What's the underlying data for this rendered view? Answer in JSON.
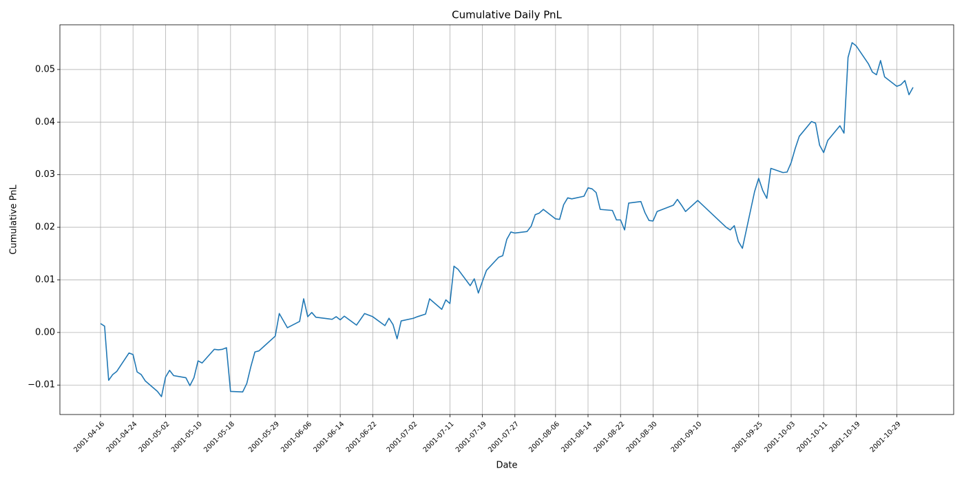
{
  "chart_data": {
    "type": "line",
    "title": "Cumulative Daily PnL",
    "x_label": "Date",
    "y_label": "Cumulative PnL",
    "x": [
      "2001-04-16",
      "2001-04-17",
      "2001-04-18",
      "2001-04-19",
      "2001-04-20",
      "2001-04-23",
      "2001-04-24",
      "2001-04-25",
      "2001-04-26",
      "2001-04-27",
      "2001-04-30",
      "2001-05-01",
      "2001-05-02",
      "2001-05-03",
      "2001-05-04",
      "2001-05-07",
      "2001-05-08",
      "2001-05-09",
      "2001-05-10",
      "2001-05-11",
      "2001-05-14",
      "2001-05-15",
      "2001-05-16",
      "2001-05-17",
      "2001-05-18",
      "2001-05-21",
      "2001-05-22",
      "2001-05-23",
      "2001-05-24",
      "2001-05-25",
      "2001-05-29",
      "2001-05-30",
      "2001-06-01",
      "2001-06-04",
      "2001-06-05",
      "2001-06-06",
      "2001-06-07",
      "2001-06-08",
      "2001-06-11",
      "2001-06-12",
      "2001-06-13",
      "2001-06-14",
      "2001-06-15",
      "2001-06-18",
      "2001-06-19",
      "2001-06-20",
      "2001-06-21",
      "2001-06-22",
      "2001-06-25",
      "2001-06-26",
      "2001-06-27",
      "2001-06-28",
      "2001-06-29",
      "2001-07-02",
      "2001-07-03",
      "2001-07-05",
      "2001-07-06",
      "2001-07-09",
      "2001-07-10",
      "2001-07-11",
      "2001-07-12",
      "2001-07-13",
      "2001-07-16",
      "2001-07-17",
      "2001-07-18",
      "2001-07-19",
      "2001-07-20",
      "2001-07-23",
      "2001-07-24",
      "2001-07-25",
      "2001-07-26",
      "2001-07-27",
      "2001-07-30",
      "2001-07-31",
      "2001-08-01",
      "2001-08-02",
      "2001-08-03",
      "2001-08-06",
      "2001-08-07",
      "2001-08-08",
      "2001-08-09",
      "2001-08-10",
      "2001-08-13",
      "2001-08-14",
      "2001-08-15",
      "2001-08-16",
      "2001-08-17",
      "2001-08-20",
      "2001-08-21",
      "2001-08-22",
      "2001-08-23",
      "2001-08-24",
      "2001-08-27",
      "2001-08-28",
      "2001-08-29",
      "2001-08-30",
      "2001-08-31",
      "2001-09-04",
      "2001-09-05",
      "2001-09-06",
      "2001-09-07",
      "2001-09-10",
      "2001-09-17",
      "2001-09-18",
      "2001-09-19",
      "2001-09-20",
      "2001-09-21",
      "2001-09-24",
      "2001-09-25",
      "2001-09-26",
      "2001-09-27",
      "2001-09-28",
      "2001-10-01",
      "2001-10-02",
      "2001-10-03",
      "2001-10-04",
      "2001-10-05",
      "2001-10-08",
      "2001-10-09",
      "2001-10-10",
      "2001-10-11",
      "2001-10-12",
      "2001-10-15",
      "2001-10-16",
      "2001-10-17",
      "2001-10-18",
      "2001-10-19",
      "2001-10-22",
      "2001-10-23",
      "2001-10-24",
      "2001-10-25",
      "2001-10-26",
      "2001-10-29",
      "2001-10-30",
      "2001-10-31",
      "2001-11-01",
      "2001-11-02"
    ],
    "series": [
      {
        "color": "#1f77b4",
        "values": [
          0.0017,
          0.0012,
          -0.0091,
          -0.008,
          -0.0074,
          -0.0039,
          -0.0042,
          -0.0075,
          -0.008,
          -0.0092,
          -0.0112,
          -0.0122,
          -0.0085,
          -0.0072,
          -0.0082,
          -0.0086,
          -0.0101,
          -0.0086,
          -0.0054,
          -0.0058,
          -0.0032,
          -0.0033,
          -0.0032,
          -0.0029,
          -0.0112,
          -0.0113,
          -0.0097,
          -0.0065,
          -0.0037,
          -0.0035,
          -0.0007,
          0.0036,
          0.0009,
          0.0021,
          0.0064,
          0.003,
          0.0038,
          0.0029,
          0.0026,
          0.0025,
          0.003,
          0.0024,
          0.0031,
          0.0014,
          0.0025,
          0.0036,
          0.0033,
          0.003,
          0.0013,
          0.0027,
          0.0015,
          -0.0012,
          0.0022,
          0.0027,
          0.003,
          0.0035,
          0.0064,
          0.0044,
          0.0062,
          0.0055,
          0.0126,
          0.012,
          0.0089,
          0.0102,
          0.0075,
          0.0097,
          0.0118,
          0.0143,
          0.0146,
          0.0177,
          0.0191,
          0.0189,
          0.0192,
          0.0202,
          0.0224,
          0.0227,
          0.0234,
          0.0216,
          0.0215,
          0.0243,
          0.0256,
          0.0254,
          0.0259,
          0.0275,
          0.0273,
          0.0266,
          0.0234,
          0.0232,
          0.0214,
          0.0214,
          0.0195,
          0.0246,
          0.0249,
          0.0228,
          0.0213,
          0.0212,
          0.023,
          0.0242,
          0.0253,
          0.0242,
          0.023,
          0.0251,
          0.02,
          0.0195,
          0.0203,
          0.0173,
          0.016,
          0.0268,
          0.0293,
          0.027,
          0.0255,
          0.0312,
          0.0304,
          0.0305,
          0.0323,
          0.035,
          0.0373,
          0.0401,
          0.0398,
          0.0356,
          0.0342,
          0.0365,
          0.0393,
          0.0379,
          0.0523,
          0.0551,
          0.0545,
          0.0511,
          0.0495,
          0.049,
          0.0517,
          0.0486,
          0.0468,
          0.0471,
          0.0479,
          0.0452,
          0.0466
        ]
      }
    ],
    "xlim": [
      "2001-04-06",
      "2001-11-12"
    ],
    "xticks": [
      "2001-04-16",
      "2001-04-24",
      "2001-05-02",
      "2001-05-10",
      "2001-05-18",
      "2001-05-29",
      "2001-06-06",
      "2001-06-14",
      "2001-06-22",
      "2001-07-02",
      "2001-07-11",
      "2001-07-19",
      "2001-07-27",
      "2001-08-06",
      "2001-08-14",
      "2001-08-22",
      "2001-08-30",
      "2001-09-10",
      "2001-09-25",
      "2001-10-03",
      "2001-10-11",
      "2001-10-19",
      "2001-10-29"
    ],
    "ylim": [
      -0.0156,
      0.0585
    ],
    "yticks": [
      {
        "value": -0.01,
        "label": "−0.01"
      },
      {
        "value": 0,
        "label": "0.00"
      },
      {
        "value": 0.01,
        "label": "0.01"
      },
      {
        "value": 0.02,
        "label": "0.02"
      },
      {
        "value": 0.03,
        "label": "0.03"
      },
      {
        "value": 0.04,
        "label": "0.04"
      },
      {
        "value": 0.05,
        "label": "0.05"
      }
    ],
    "grid": true
  }
}
